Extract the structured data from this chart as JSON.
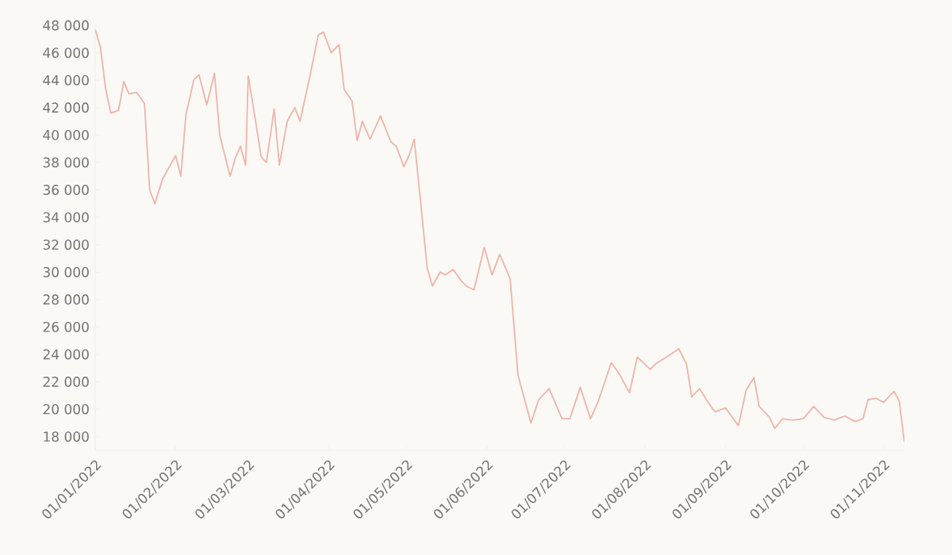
{
  "chart_data": {
    "type": "line",
    "color": "#eeb4aa",
    "grid": false,
    "marker": "none",
    "line_style": "solid",
    "x": [
      "2022-01-01",
      "2022-01-03",
      "2022-01-05",
      "2022-01-07",
      "2022-01-10",
      "2022-01-12",
      "2022-01-14",
      "2022-01-17",
      "2022-01-20",
      "2022-01-22",
      "2022-01-24",
      "2022-01-27",
      "2022-02-01",
      "2022-02-03",
      "2022-02-05",
      "2022-02-08",
      "2022-02-10",
      "2022-02-13",
      "2022-02-16",
      "2022-02-18",
      "2022-02-22",
      "2022-02-24",
      "2022-02-26",
      "2022-02-28",
      "2022-03-01",
      "2022-03-03",
      "2022-03-06",
      "2022-03-08",
      "2022-03-11",
      "2022-03-13",
      "2022-03-16",
      "2022-03-19",
      "2022-03-21",
      "2022-03-25",
      "2022-03-28",
      "2022-03-30",
      "2022-04-02",
      "2022-04-05",
      "2022-04-07",
      "2022-04-10",
      "2022-04-12",
      "2022-04-14",
      "2022-04-17",
      "2022-04-21",
      "2022-04-25",
      "2022-04-27",
      "2022-04-30",
      "2022-05-02",
      "2022-05-04",
      "2022-05-06",
      "2022-05-09",
      "2022-05-11",
      "2022-05-14",
      "2022-05-16",
      "2022-05-19",
      "2022-05-22",
      "2022-05-24",
      "2022-05-27",
      "2022-05-31",
      "2022-06-03",
      "2022-06-06",
      "2022-06-10",
      "2022-06-13",
      "2022-06-16",
      "2022-06-18",
      "2022-06-21",
      "2022-06-25",
      "2022-06-30",
      "2022-07-03",
      "2022-07-07",
      "2022-07-11",
      "2022-07-14",
      "2022-07-19",
      "2022-07-22",
      "2022-07-26",
      "2022-07-29",
      "2022-08-03",
      "2022-08-05",
      "2022-08-10",
      "2022-08-14",
      "2022-08-17",
      "2022-08-19",
      "2022-08-22",
      "2022-08-26",
      "2022-08-28",
      "2022-09-01",
      "2022-09-06",
      "2022-09-09",
      "2022-09-12",
      "2022-09-14",
      "2022-09-18",
      "2022-09-20",
      "2022-09-23",
      "2022-09-27",
      "2022-10-01",
      "2022-10-05",
      "2022-10-09",
      "2022-10-13",
      "2022-10-17",
      "2022-10-21",
      "2022-10-24",
      "2022-10-26",
      "2022-10-29",
      "2022-11-01",
      "2022-11-05",
      "2022-11-07",
      "2022-11-09"
    ],
    "values": [
      47700,
      46400,
      43400,
      41600,
      41800,
      43900,
      43000,
      43100,
      42300,
      36000,
      35000,
      36800,
      38500,
      37000,
      41500,
      44000,
      44400,
      42200,
      44500,
      40000,
      37000,
      38300,
      39200,
      37800,
      44300,
      42000,
      38400,
      38000,
      41900,
      37800,
      41000,
      42000,
      41000,
      44500,
      47300,
      47500,
      46000,
      46600,
      43300,
      42500,
      39600,
      41000,
      39700,
      41400,
      39500,
      39200,
      37700,
      38500,
      39700,
      36000,
      30300,
      29000,
      30000,
      29800,
      30200,
      29400,
      29000,
      28700,
      31800,
      29800,
      31300,
      29500,
      22500,
      20400,
      19000,
      20700,
      21500,
      19300,
      19300,
      21600,
      19300,
      20600,
      23400,
      22600,
      21200,
      23800,
      22900,
      23300,
      23900,
      24400,
      23300,
      20900,
      21500,
      20300,
      19800,
      20100,
      18800,
      21400,
      22300,
      20200,
      19400,
      18600,
      19300,
      19200,
      19300,
      20200,
      19400,
      19200,
      19500,
      19100,
      19300,
      20700,
      20800,
      20500,
      21300,
      20600,
      17600
    ],
    "xlim": [
      "2022-01-01",
      "2022-11-09"
    ],
    "ylim": [
      17000,
      48000
    ],
    "xticks": [
      {
        "value": "2022-01-01",
        "label": "01/01/2022"
      },
      {
        "value": "2022-02-01",
        "label": "01/02/2022"
      },
      {
        "value": "2022-03-01",
        "label": "01/03/2022"
      },
      {
        "value": "2022-04-01",
        "label": "01/04/2022"
      },
      {
        "value": "2022-05-01",
        "label": "01/05/2022"
      },
      {
        "value": "2022-06-01",
        "label": "01/06/2022"
      },
      {
        "value": "2022-07-01",
        "label": "01/07/2022"
      },
      {
        "value": "2022-08-01",
        "label": "01/08/2022"
      },
      {
        "value": "2022-09-01",
        "label": "01/09/2022"
      },
      {
        "value": "2022-10-01",
        "label": "01/10/2022"
      },
      {
        "value": "2022-11-01",
        "label": "01/11/2022"
      }
    ],
    "yticks": [
      {
        "value": 18000,
        "label": "18 000"
      },
      {
        "value": 20000,
        "label": "20 000"
      },
      {
        "value": 22000,
        "label": "22 000"
      },
      {
        "value": 24000,
        "label": "24 000"
      },
      {
        "value": 26000,
        "label": "26 000"
      },
      {
        "value": 28000,
        "label": "28 000"
      },
      {
        "value": 30000,
        "label": "30 000"
      },
      {
        "value": 32000,
        "label": "32 000"
      },
      {
        "value": 34000,
        "label": "34 000"
      },
      {
        "value": 36000,
        "label": "36 000"
      },
      {
        "value": 38000,
        "label": "38 000"
      },
      {
        "value": 40000,
        "label": "40 000"
      },
      {
        "value": 42000,
        "label": "42 000"
      },
      {
        "value": 44000,
        "label": "44 000"
      },
      {
        "value": 46000,
        "label": "46 000"
      },
      {
        "value": 48000,
        "label": "48 000"
      }
    ]
  }
}
